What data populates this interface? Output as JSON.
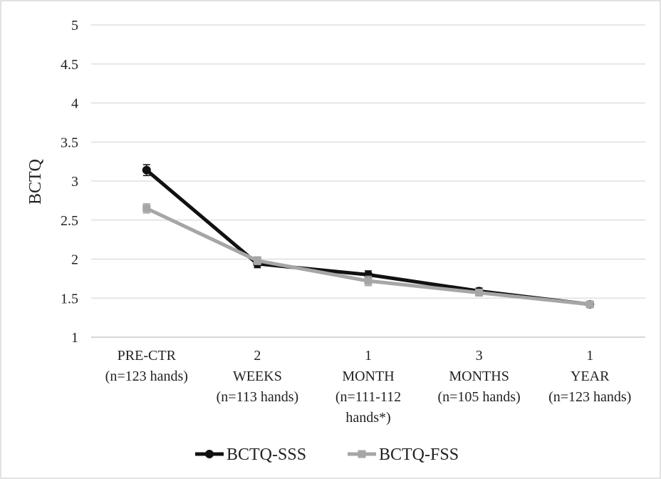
{
  "chart_data": {
    "type": "line",
    "title": "",
    "xlabel": "",
    "ylabel": "BCTQ",
    "ylim": [
      1,
      5
    ],
    "yticks": [
      "1",
      "1.5",
      "2",
      "2.5",
      "3",
      "3.5",
      "4",
      "4.5",
      "5"
    ],
    "grid": true,
    "legend_position": "bottom",
    "categories": [
      [
        "PRE-CTR",
        "(n=123 hands)"
      ],
      [
        "2",
        "WEEKS",
        "(n=113 hands)"
      ],
      [
        "1",
        "MONTH",
        "(n=111-112",
        "hands*)"
      ],
      [
        "3",
        "MONTHS",
        "(n=105 hands)"
      ],
      [
        "1",
        "YEAR",
        "(n=123 hands)"
      ]
    ],
    "series": [
      {
        "name": "BCTQ-SSS",
        "values": [
          3.14,
          1.94,
          1.8,
          1.59,
          1.42
        ],
        "error": [
          0.07,
          0.05,
          0.05,
          0.04,
          0.03
        ],
        "color": "#111111",
        "marker": "circle"
      },
      {
        "name": "BCTQ-FSS",
        "values": [
          2.65,
          1.98,
          1.72,
          1.57,
          1.42
        ],
        "error": [
          0.06,
          0.05,
          0.06,
          0.04,
          0.03
        ],
        "color": "#a6a6a6",
        "marker": "square"
      }
    ]
  }
}
